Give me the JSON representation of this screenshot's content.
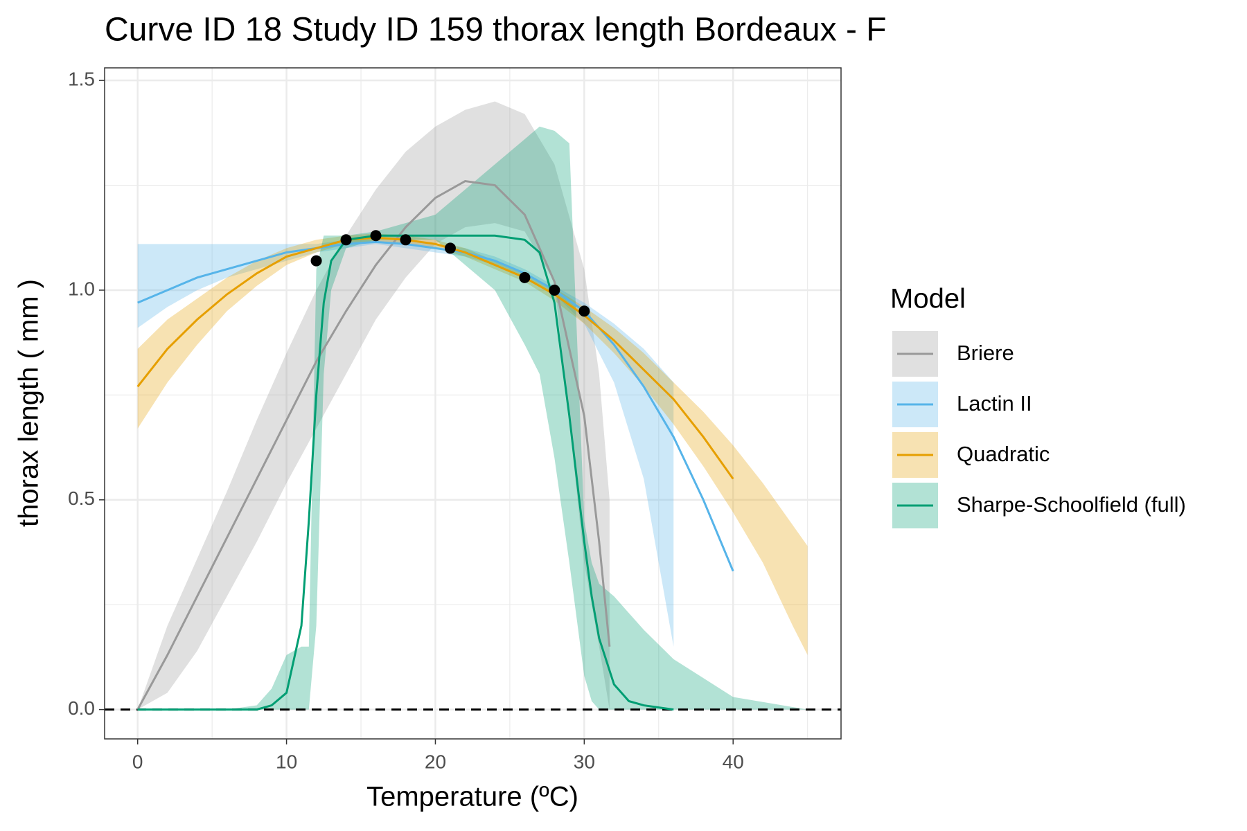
{
  "chart_data": {
    "type": "line",
    "title": "Curve ID 18 Study ID 159 thorax length Bordeaux - F",
    "x_label": "Temperature (ºC)",
    "y_label": "thorax length ( mm )",
    "legend_title": "Model",
    "legend_position": "right",
    "grid": true,
    "xlim": [
      -2.22,
      47.25
    ],
    "ylim": [
      -0.07,
      1.53
    ],
    "xticks": [
      0,
      10,
      20,
      30,
      40
    ],
    "yticks": [
      {
        "value": 0,
        "label": "0.0"
      },
      {
        "value": 0.5,
        "label": "0.5"
      },
      {
        "value": 1,
        "label": "1.0"
      },
      {
        "value": 1.5,
        "label": "1.5"
      }
    ],
    "minor_xticks": [
      5,
      15,
      25,
      35,
      45
    ],
    "minor_yticks": [
      0.25,
      0.75,
      1.25
    ],
    "hline": 0,
    "ribbon_opacity": 0.3,
    "series": [
      {
        "name": "Briere",
        "color": "#999999",
        "x": [
          0,
          2,
          4,
          6,
          8,
          10,
          12,
          14,
          16,
          18,
          20,
          22,
          24,
          26,
          28,
          30,
          31,
          31.7
        ],
        "values": [
          0,
          0.13,
          0.27,
          0.41,
          0.55,
          0.69,
          0.83,
          0.95,
          1.06,
          1.15,
          1.22,
          1.26,
          1.25,
          1.18,
          1.02,
          0.7,
          0.4,
          0.15
        ],
        "upper": [
          0,
          0.2,
          0.36,
          0.52,
          0.69,
          0.85,
          1.0,
          1.13,
          1.24,
          1.33,
          1.39,
          1.43,
          1.45,
          1.42,
          1.3,
          1.05,
          0.8,
          0.5
        ],
        "lower": [
          0,
          0.04,
          0.14,
          0.27,
          0.4,
          0.54,
          0.67,
          0.8,
          0.93,
          1.03,
          1.11,
          1.15,
          1.16,
          1.14,
          1.02,
          0.35,
          0.15,
          0
        ]
      },
      {
        "name": "Lactin II",
        "color": "#56B4E9",
        "x": [
          0,
          2,
          4,
          6,
          8,
          10,
          12,
          14,
          16,
          18,
          20,
          22,
          24,
          26,
          28,
          30,
          32,
          34,
          36,
          38,
          40
        ],
        "values": [
          0.97,
          1.0,
          1.03,
          1.05,
          1.07,
          1.09,
          1.1,
          1.11,
          1.115,
          1.11,
          1.1,
          1.09,
          1.07,
          1.04,
          1.0,
          0.95,
          0.87,
          0.77,
          0.65,
          0.5,
          0.33
        ],
        "upper": [
          1.11,
          1.11,
          1.11,
          1.11,
          1.11,
          1.11,
          1.11,
          1.12,
          1.12,
          1.12,
          1.11,
          1.1,
          1.08,
          1.05,
          1.01,
          0.97,
          0.92,
          0.86,
          0.78,
          null,
          null
        ],
        "lower": [
          0.91,
          0.96,
          1.0,
          1.03,
          1.05,
          1.07,
          1.09,
          1.1,
          1.11,
          1.1,
          1.09,
          1.08,
          1.06,
          1.03,
          0.99,
          0.92,
          0.78,
          0.55,
          0.15,
          null,
          null
        ]
      },
      {
        "name": "Quadratic",
        "color": "#E69F00",
        "x": [
          0,
          2,
          4,
          6,
          8,
          10,
          12,
          14,
          16,
          18,
          20,
          22,
          24,
          26,
          28,
          30,
          32,
          34,
          36,
          38,
          40,
          42,
          44,
          45
        ],
        "values": [
          0.77,
          0.86,
          0.93,
          0.99,
          1.04,
          1.08,
          1.1,
          1.12,
          1.125,
          1.12,
          1.11,
          1.09,
          1.06,
          1.03,
          0.99,
          0.94,
          0.88,
          0.81,
          0.74,
          0.65,
          0.55,
          null,
          null,
          null
        ],
        "upper": [
          0.86,
          0.93,
          0.98,
          1.03,
          1.07,
          1.1,
          1.12,
          1.13,
          1.135,
          1.13,
          1.12,
          1.1,
          1.07,
          1.04,
          1.005,
          0.96,
          0.91,
          0.85,
          0.78,
          0.71,
          0.63,
          0.54,
          0.44,
          0.39
        ],
        "lower": [
          0.67,
          0.78,
          0.87,
          0.95,
          1.01,
          1.06,
          1.09,
          1.11,
          1.115,
          1.11,
          1.1,
          1.08,
          1.05,
          1.02,
          0.975,
          0.92,
          0.85,
          0.77,
          0.68,
          0.58,
          0.47,
          0.35,
          0.2,
          0.13
        ]
      },
      {
        "name": "Sharpe-Schoolfield (full)",
        "color": "#009E73",
        "x": [
          0,
          2,
          4,
          6,
          8,
          9,
          10,
          11,
          11.5,
          12,
          12.5,
          13,
          14,
          16,
          20,
          24,
          26,
          27,
          28,
          29,
          30,
          30.5,
          31,
          32,
          33,
          34,
          36,
          40,
          45
        ],
        "values": [
          0,
          0,
          0,
          0,
          0,
          0.01,
          0.04,
          0.2,
          0.45,
          0.75,
          0.97,
          1.07,
          1.12,
          1.13,
          1.13,
          1.13,
          1.12,
          1.09,
          0.97,
          0.7,
          0.4,
          0.27,
          0.17,
          0.06,
          0.02,
          0.01,
          0,
          null,
          null
        ],
        "upper": [
          0,
          0,
          0,
          0,
          0.01,
          0.05,
          0.13,
          0.15,
          0.15,
          1.05,
          1.13,
          1.13,
          1.13,
          1.14,
          1.18,
          1.3,
          1.36,
          1.39,
          1.38,
          1.35,
          0.45,
          0.35,
          0.3,
          0.27,
          0.23,
          0.19,
          0.12,
          0.03,
          0
        ],
        "lower": [
          0,
          0,
          0,
          0,
          0,
          0,
          0,
          0,
          0,
          0.2,
          0.8,
          1.0,
          1.1,
          1.12,
          1.12,
          1.0,
          0.87,
          0.8,
          0.6,
          0.35,
          0.08,
          0.02,
          0,
          0,
          0,
          0,
          0,
          0,
          0
        ]
      }
    ],
    "points": {
      "color": "#000000",
      "x": [
        12,
        14,
        16,
        18,
        21,
        26,
        28,
        30
      ],
      "values": [
        1.07,
        1.12,
        1.13,
        1.12,
        1.1,
        1.03,
        1.0,
        0.95
      ]
    }
  }
}
